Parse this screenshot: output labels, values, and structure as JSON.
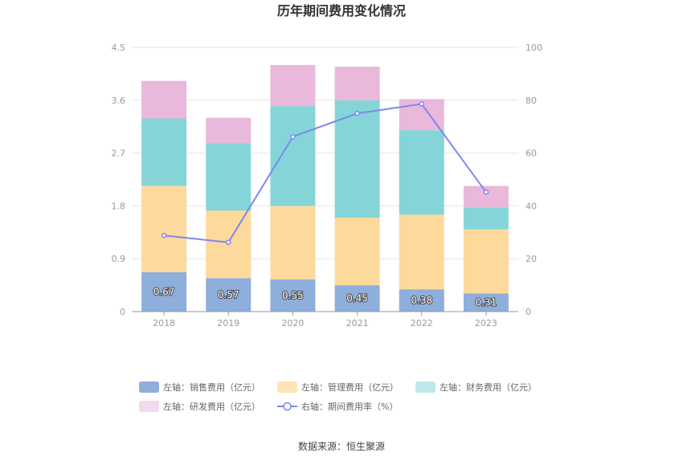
{
  "chart_data": {
    "type": "bar",
    "title": "历年期间费用变化情况",
    "categories": [
      "2018",
      "2019",
      "2020",
      "2021",
      "2022",
      "2023"
    ],
    "y_left": {
      "ticks": [
        "0",
        "0.9",
        "1.8",
        "2.7",
        "3.6",
        "4.5"
      ],
      "ylim": [
        0,
        4.5
      ]
    },
    "y_right": {
      "ticks": [
        "0",
        "20",
        "40",
        "60",
        "80",
        "100"
      ],
      "ylim": [
        0,
        100
      ]
    },
    "grid": true,
    "legend_position": "bottom",
    "series": [
      {
        "name": "左轴：销售费用（亿元）",
        "kind": "stacked-bar",
        "axis": "left",
        "color": "#8eaedc",
        "values": [
          0.67,
          0.57,
          0.55,
          0.45,
          0.38,
          0.31
        ],
        "labels": [
          "0.67",
          "0.57",
          "0.55",
          "0.45",
          "0.38",
          "0.31"
        ]
      },
      {
        "name": "左轴：管理费用（亿元）",
        "kind": "stacked-bar",
        "axis": "left",
        "color": "#fdd99b",
        "values": [
          1.47,
          1.15,
          1.25,
          1.15,
          1.27,
          1.09
        ]
      },
      {
        "name": "左轴：财务费用（亿元）",
        "kind": "stacked-bar",
        "axis": "left",
        "color": "#85d5d8",
        "values": [
          1.15,
          1.15,
          1.7,
          2.0,
          1.44,
          0.37
        ]
      },
      {
        "name": "左轴：研发费用（亿元）",
        "kind": "stacked-bar",
        "axis": "left",
        "color": "#e9b8da",
        "values": [
          0.64,
          0.43,
          0.7,
          0.57,
          0.53,
          0.37
        ]
      },
      {
        "name": "右轴：期间费用率（%）",
        "kind": "line",
        "axis": "right",
        "color": "#7d88ee",
        "values": [
          28.8,
          26.2,
          66.2,
          75.0,
          78.6,
          45.2
        ]
      }
    ]
  },
  "source": "数据来源：恒生聚源"
}
